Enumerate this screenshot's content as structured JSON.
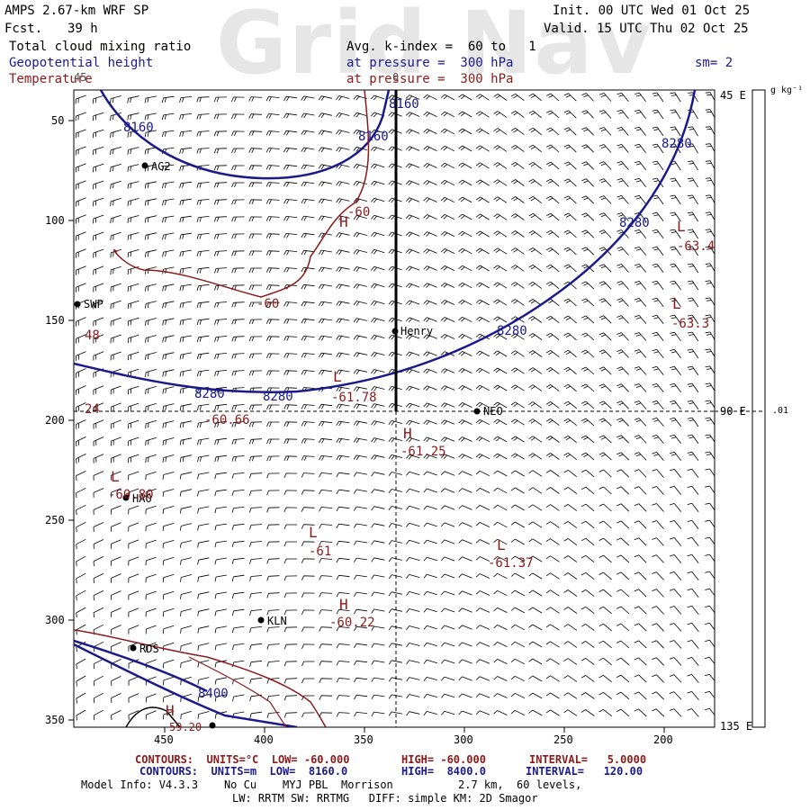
{
  "header": {
    "model": "AMPS 2.67-km WRF SP",
    "fcst_label": "Fcst.",
    "fcst_value": "39 h",
    "init": "Init. 00 UTC Wed 01 Oct 25",
    "valid": "Valid. 15 UTC Thu 02 Oct 25",
    "field1": "Total cloud mixing ratio",
    "field2": "Geopotential height",
    "field3": "Temperature",
    "avg": "Avg. k-index =  60 to   1",
    "pressure1": "at pressure =  300 hPa",
    "pressure2": "at pressure =  300 hPa",
    "sm": "sm= 2",
    "watermark": "Grid Nav"
  },
  "colorbar": {
    "units": "g kg⁻¹",
    "top_label": "45 E",
    "mid_label": "90 E",
    "bot_label": "135 E",
    "value": ".01"
  },
  "axes": {
    "x_ticks": [
      "450",
      "400",
      "350",
      "300",
      "250",
      "200"
    ],
    "y_ticks": [
      "50",
      "100",
      "150",
      "200",
      "250",
      "300",
      "350"
    ]
  },
  "stations": [
    {
      "id": "ag2",
      "name": "AG2"
    },
    {
      "id": "swp",
      "name": "SWP"
    },
    {
      "id": "henry",
      "name": "Henry"
    },
    {
      "id": "neo",
      "name": "NEO"
    },
    {
      "id": "hao",
      "name": "HAO"
    },
    {
      "id": "kln",
      "name": "KLN"
    },
    {
      "id": "rds",
      "name": "RDS"
    }
  ],
  "contour_labels": {
    "h8160a": "8160",
    "h8160b": "8160",
    "h8160c": "8160",
    "h8280a": "8280",
    "h8280b": "8280",
    "h8280c": "8280",
    "h8280d": "8280",
    "h8280e": "8280",
    "h8400": "8400",
    "t60a": "-60",
    "t60b": "-60",
    "t61": "-61",
    "t6178": "-61.78",
    "t6066": "-60.66",
    "t6125": "-61.25",
    "t6080": "-60.80",
    "t6137": "-61.37",
    "t6022": "-60.22",
    "t634": "-63.4",
    "t633": "-63.3",
    "t48": "48",
    "t24": "24",
    "t45": "45",
    "t0": "0",
    "t5920": "59.20"
  },
  "extrema": {
    "H1": "H",
    "H2": "H",
    "H3": "H",
    "H4": "H",
    "L1": "L",
    "L2": "L",
    "L3": "L",
    "L4": "L",
    "L5": "L",
    "L6": "L"
  },
  "footer": {
    "line1_contours": "CONTOURS:  UNITS=°C  LOW= -60.000",
    "line1_high": "HIGH= -60.000",
    "line1_interval": "INTERVAL=   5.0000",
    "line2_contours": "CONTOURS:  UNITS=m  LOW=  8160.0",
    "line2_high": "HIGH=  8400.0",
    "line2_interval": "INTERVAL=   120.00",
    "model_info": "Model Info: V4.3.3    No Cu    MYJ PBL  Morrison          2.7 km,  60 levels,",
    "physics": "LW: RRTM SW: RRTMG   DIFF: simple KM: 2D Smagor"
  }
}
